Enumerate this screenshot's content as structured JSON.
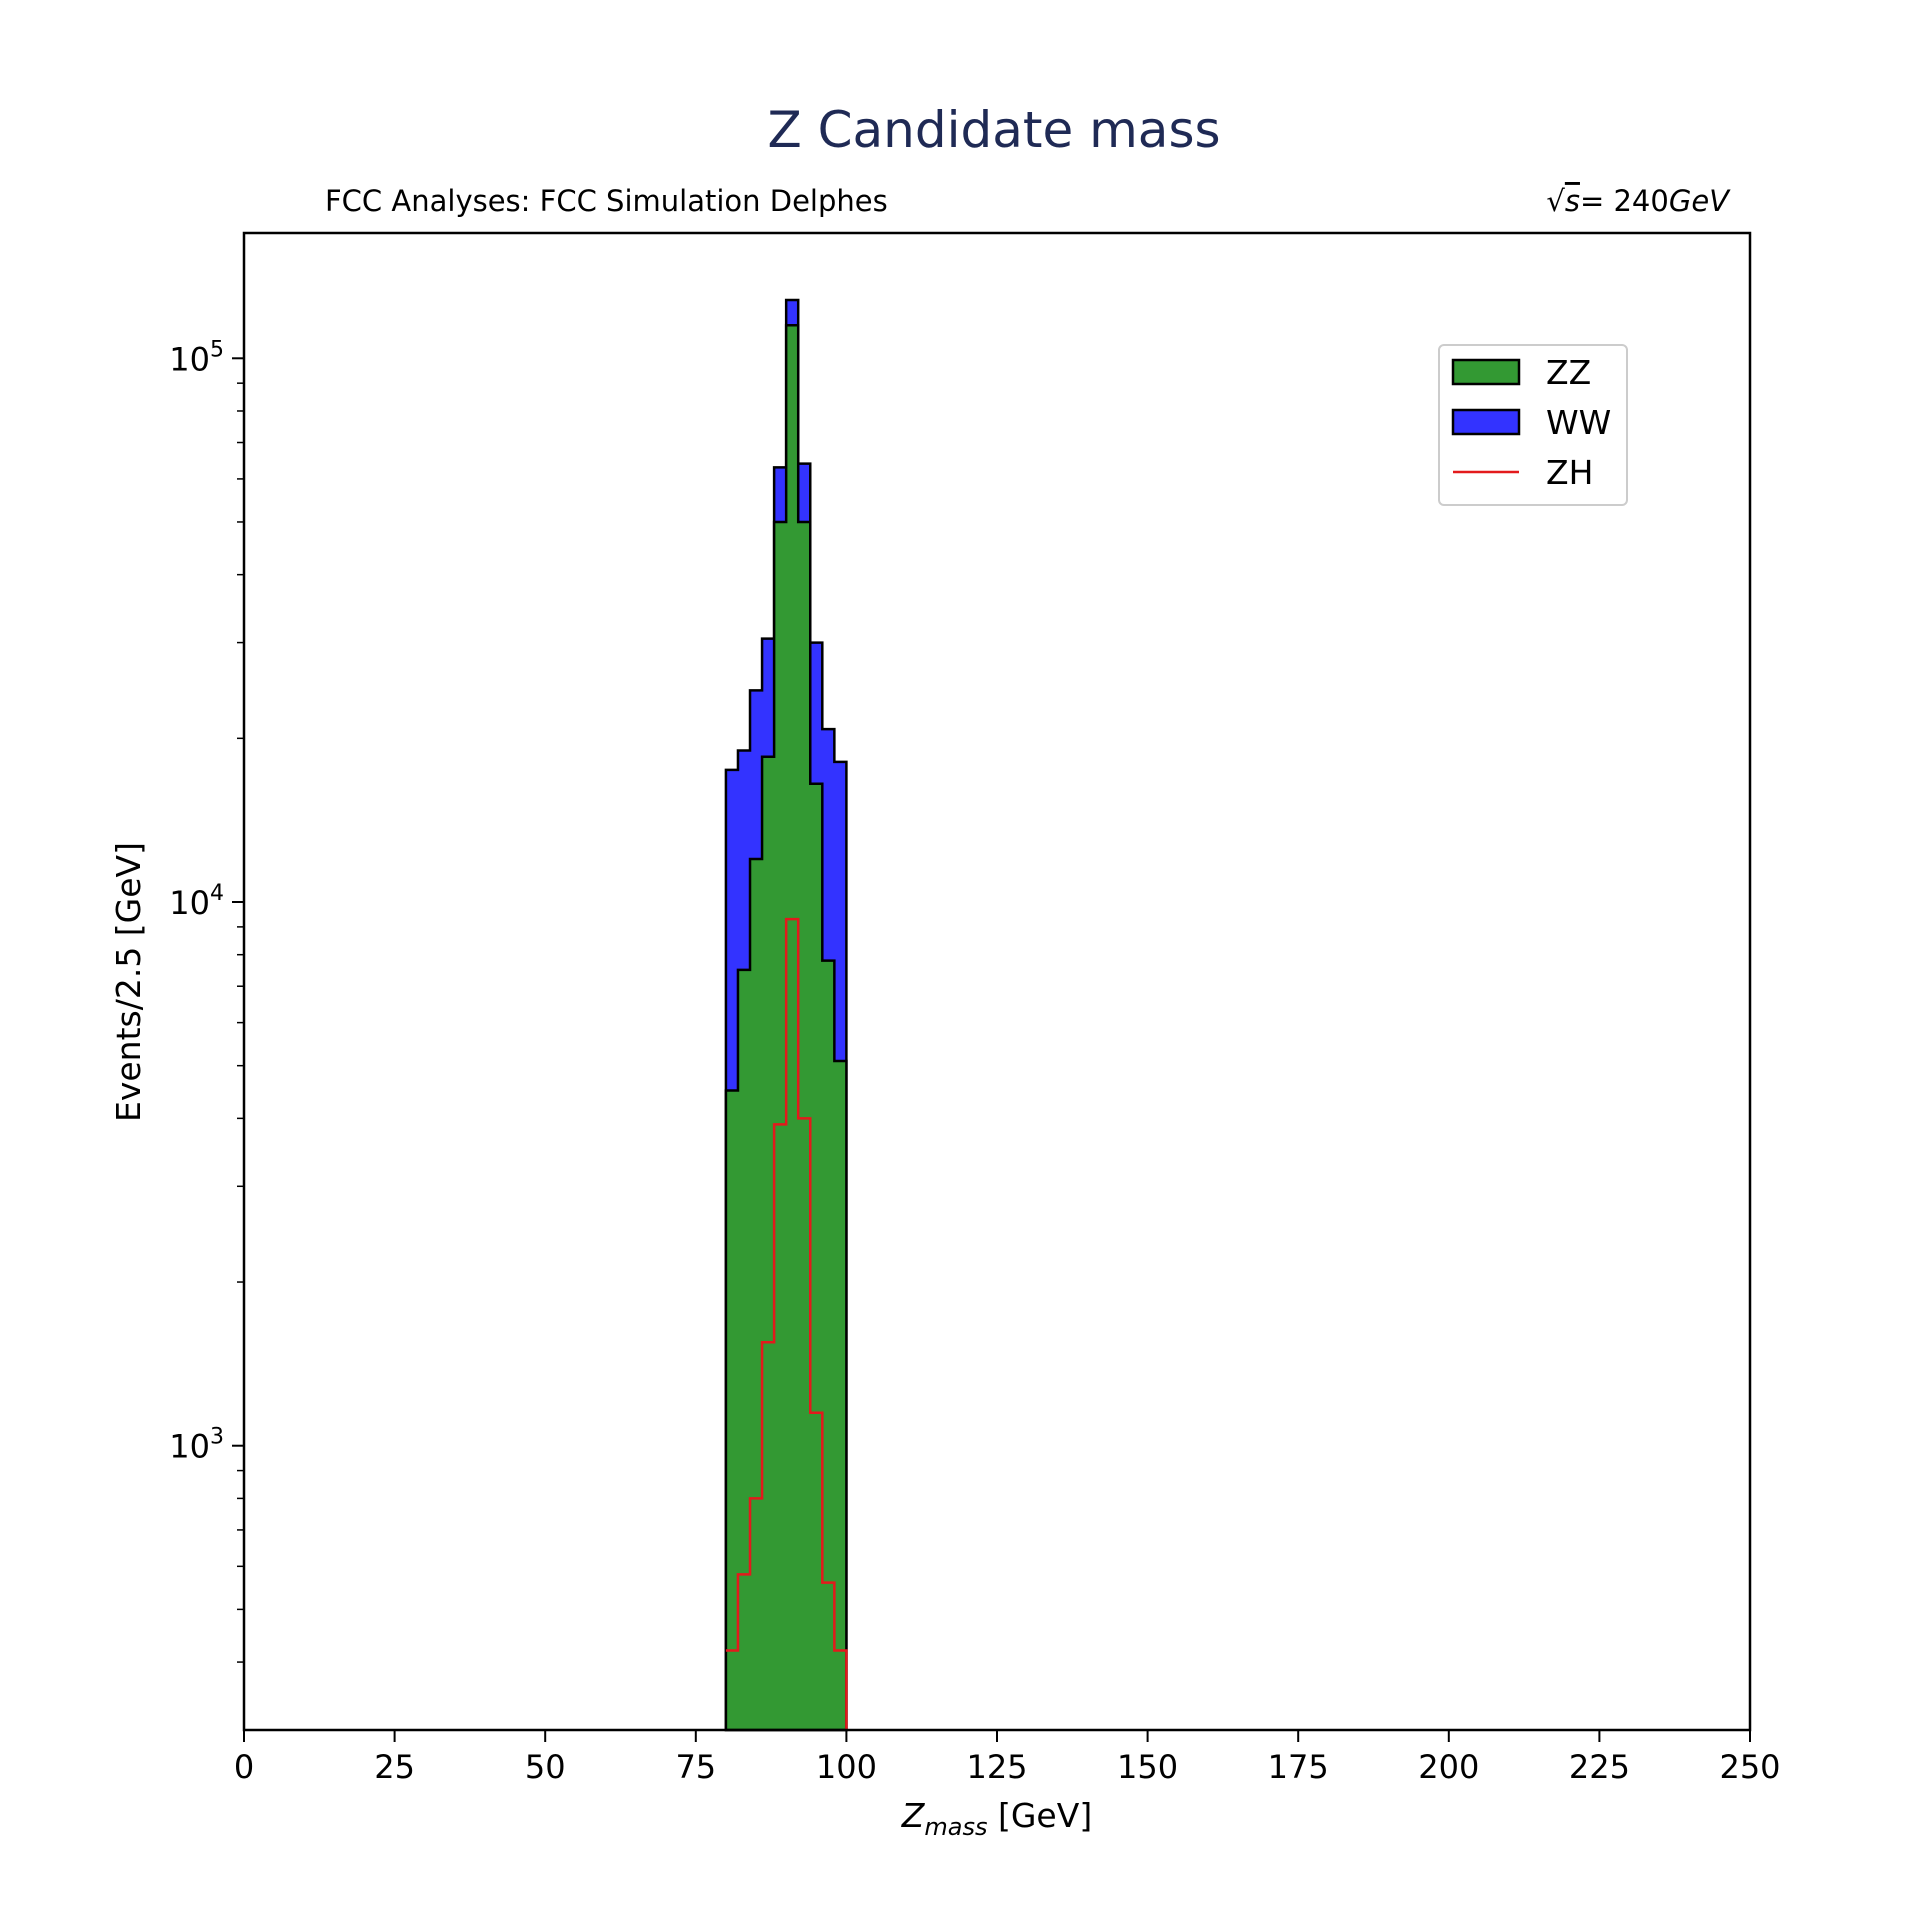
{
  "chart_data": {
    "type": "histogram",
    "title": "Z Candidate mass",
    "subtitle_left": "FCC Analyses: FCC Simulation Delphes",
    "subtitle_right": {
      "sqrt": "√",
      "s": "s",
      "equals": "= 240",
      "unit": "GeV"
    },
    "xlabel": {
      "main": "Z",
      "sub": "mass",
      "unit": " [GeV]"
    },
    "ylabel": "Events/2.5 [GeV]",
    "xlim": [
      0,
      250
    ],
    "ylim": [
      300,
      170000
    ],
    "y_scale": "log",
    "x_ticks": [
      0,
      25,
      50,
      75,
      100,
      125,
      150,
      175,
      200,
      225,
      250
    ],
    "y_major_ticks": [
      {
        "value": 1000,
        "base": "10",
        "exp": "3"
      },
      {
        "value": 10000,
        "base": "10",
        "exp": "4"
      },
      {
        "value": 100000,
        "base": "10",
        "exp": "5"
      }
    ],
    "y_minor_ticks": [
      400,
      500,
      600,
      700,
      800,
      900,
      2000,
      3000,
      4000,
      5000,
      6000,
      7000,
      8000,
      9000,
      20000,
      30000,
      40000,
      50000,
      60000,
      70000,
      80000,
      90000
    ],
    "bin_edges": [
      80,
      82,
      84,
      86,
      88,
      90,
      92,
      94,
      96,
      98,
      100
    ],
    "series": [
      {
        "name": "ZZ",
        "style": "filled",
        "color": "#339933",
        "values": [
          4500,
          7500,
          12000,
          18500,
          50000,
          115000,
          50000,
          16500,
          7800,
          5100
        ]
      },
      {
        "name": "WW",
        "style": "stacked-filled",
        "color": "#3333ff",
        "values": [
          13000,
          11500,
          12500,
          12000,
          13000,
          13000,
          14000,
          13500,
          13000,
          13000
        ]
      },
      {
        "name": "ZH",
        "style": "step",
        "color": "#e31a1c",
        "values": [
          420,
          580,
          800,
          1550,
          3900,
          9300,
          4000,
          1150,
          560,
          420
        ]
      }
    ],
    "legend": {
      "position": "top-right",
      "entries": [
        "ZZ",
        "WW",
        "ZH"
      ]
    }
  }
}
